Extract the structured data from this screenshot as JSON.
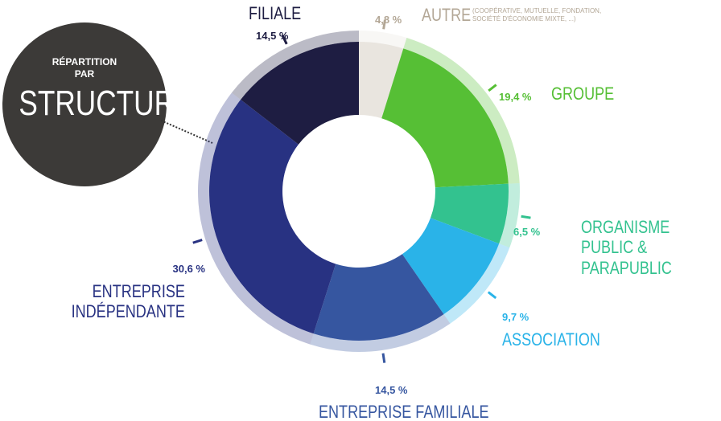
{
  "chart_data": {
    "type": "donut",
    "title_lines": [
      "RÉPARTITION",
      "PAR",
      "STRUCTURE"
    ],
    "categories": [
      "AUTRE",
      "GROUPE",
      "ORGANISME PUBLIC & PARAPUBLIC",
      "ASSOCIATION",
      "ENTREPRISE FAMILIALE",
      "ENTREPRISE INDÉPENDANTE",
      "FILIALE"
    ],
    "notes": {
      "0": "(COOPÉRATIVE, MUTUELLE, FONDATION, SOCIÉTÉ D'ÉCONOMIE MIXTE, ...)"
    },
    "values": [
      4.8,
      19.4,
      6.5,
      9.7,
      14.5,
      30.6,
      14.5
    ],
    "value_labels": [
      "4,8 %",
      "19,4 %",
      "6,5 %",
      "9,7 %",
      "14,5 %",
      "30,6 %",
      "14,5 %"
    ],
    "colors": [
      "#e9e5df",
      "#56bf35",
      "#33c28f",
      "#2ab3e8",
      "#3656a0",
      "#283282",
      "#1e1d42"
    ],
    "label_colors": [
      "#b3a796",
      "#56bf35",
      "#33c28f",
      "#2ab3e8",
      "#3656a0",
      "#283282",
      "#1e1d42"
    ]
  }
}
